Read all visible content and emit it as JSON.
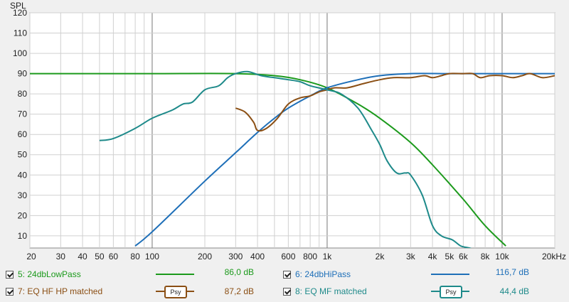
{
  "chart_data": {
    "type": "line",
    "ylabel": "SPL",
    "xscale": "log",
    "xlim": [
      20,
      20000
    ],
    "ylim": [
      4,
      120
    ],
    "grid": true,
    "x_ticks": [
      {
        "v": 20,
        "label": "20"
      },
      {
        "v": 30,
        "label": "30"
      },
      {
        "v": 40,
        "label": "40"
      },
      {
        "v": 50,
        "label": "50"
      },
      {
        "v": 60,
        "label": "60"
      },
      {
        "v": 80,
        "label": "80"
      },
      {
        "v": 100,
        "label": "100"
      },
      {
        "v": 200,
        "label": "200"
      },
      {
        "v": 300,
        "label": "300"
      },
      {
        "v": 400,
        "label": "400"
      },
      {
        "v": 600,
        "label": "600"
      },
      {
        "v": 800,
        "label": "800"
      },
      {
        "v": 1000,
        "label": "1k"
      },
      {
        "v": 2000,
        "label": "2k"
      },
      {
        "v": 3000,
        "label": "3k"
      },
      {
        "v": 4000,
        "label": "4k"
      },
      {
        "v": 5000,
        "label": "5k"
      },
      {
        "v": 6000,
        "label": "6k"
      },
      {
        "v": 8000,
        "label": "8k"
      },
      {
        "v": 10000,
        "label": "10k"
      },
      {
        "v": 20000,
        "label": "20kHz"
      }
    ],
    "y_ticks": [
      10,
      20,
      30,
      40,
      50,
      60,
      70,
      80,
      90,
      100,
      110,
      120
    ],
    "series": [
      {
        "name": "5: 24dbLowPass",
        "color": "#1c9a1c",
        "x": [
          20,
          100,
          300,
          500,
          700,
          1000,
          1500,
          2000,
          3000,
          4000,
          6000,
          8000,
          10500
        ],
        "y": [
          90,
          90,
          90,
          89,
          87,
          83,
          75,
          68,
          56,
          45,
          28,
          15,
          5
        ]
      },
      {
        "name": "6: 24dbHiPass",
        "color": "#1e6fb8",
        "x": [
          80,
          100,
          200,
          300,
          400,
          500,
          600,
          800,
          1000,
          1500,
          2000,
          3000,
          5000,
          10000,
          20000
        ],
        "y": [
          5,
          12,
          37,
          51,
          61,
          68,
          73,
          79,
          83,
          87,
          89,
          90,
          90,
          90,
          90
        ]
      },
      {
        "name": "7: EQ HF HP matched",
        "color": "#8b4f14",
        "x": [
          300,
          340,
          380,
          400,
          450,
          520,
          600,
          700,
          800,
          900,
          1000,
          1100,
          1300,
          1600,
          2000,
          2400,
          3000,
          3600,
          4000,
          4500,
          5000,
          6000,
          6800,
          7500,
          8500,
          10000,
          11500,
          13000,
          14500,
          17000,
          20000
        ],
        "y": [
          73,
          71,
          66,
          62,
          63,
          68,
          75,
          78,
          79,
          81,
          82,
          83,
          83,
          85,
          87,
          88,
          88,
          89,
          88,
          89,
          90,
          90,
          90,
          88,
          89,
          89,
          88,
          89,
          90,
          88,
          89
        ]
      },
      {
        "name": "8: EQ MF matched",
        "color": "#1e8a8a",
        "x": [
          50,
          60,
          80,
          100,
          130,
          150,
          170,
          200,
          240,
          270,
          300,
          350,
          420,
          500,
          600,
          700,
          800,
          1000,
          1200,
          1500,
          1800,
          2000,
          2200,
          2500,
          2800,
          3000,
          3500,
          4000,
          4500,
          5200,
          5800,
          6500,
          7000
        ],
        "y": [
          57,
          58,
          63,
          68,
          72,
          75,
          76,
          82,
          84,
          88,
          90,
          91,
          89,
          88,
          87,
          86,
          84,
          82,
          80,
          73,
          62,
          55,
          47,
          41,
          41,
          40,
          30,
          15,
          10,
          8,
          5,
          4,
          3
        ]
      }
    ]
  },
  "legend": [
    {
      "checked": true,
      "label": "5: 24dbLowPass",
      "style": "line",
      "color": "#1c9a1c",
      "value": "86,0 dB"
    },
    {
      "checked": true,
      "label": "6: 24dbHiPass",
      "style": "line",
      "color": "#1e6fb8",
      "value": "116,7 dB"
    },
    {
      "checked": true,
      "label": "7: EQ HF HP matched",
      "style": "psy",
      "color": "#8b4f14",
      "psy_text": "Psy",
      "value": "87,2 dB"
    },
    {
      "checked": true,
      "label": "8: EQ MF matched",
      "style": "psy",
      "color": "#1e8a8a",
      "psy_text": "Psy",
      "value": "44,4 dB"
    }
  ]
}
